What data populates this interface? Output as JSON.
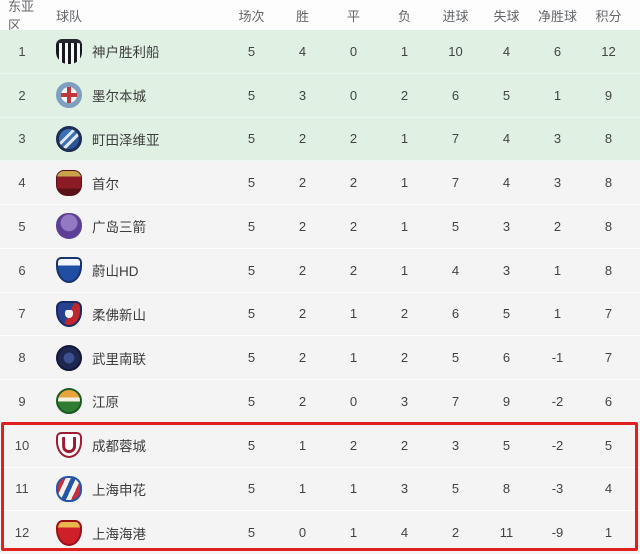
{
  "table": {
    "columns": [
      "东亚区",
      "球队",
      "场次",
      "胜",
      "平",
      "负",
      "进球",
      "失球",
      "净胜球",
      "积分"
    ],
    "rows": [
      {
        "rank": 1,
        "team": "神户胜利船",
        "badge": "kobe",
        "played": 5,
        "win": 4,
        "draw": 0,
        "loss": 1,
        "goals_for": 10,
        "goals_against": 4,
        "goal_diff": 6,
        "points": 12,
        "zone": "green",
        "highlighted": false
      },
      {
        "rank": 2,
        "team": "墨尔本城",
        "badge": "melb",
        "played": 5,
        "win": 3,
        "draw": 0,
        "loss": 2,
        "goals_for": 6,
        "goals_against": 5,
        "goal_diff": 1,
        "points": 9,
        "zone": "green",
        "highlighted": false
      },
      {
        "rank": 3,
        "team": "町田泽维亚",
        "badge": "machida",
        "played": 5,
        "win": 2,
        "draw": 2,
        "loss": 1,
        "goals_for": 7,
        "goals_against": 4,
        "goal_diff": 3,
        "points": 8,
        "zone": "green",
        "highlighted": false
      },
      {
        "rank": 4,
        "team": "首尔",
        "badge": "seoul",
        "played": 5,
        "win": 2,
        "draw": 2,
        "loss": 1,
        "goals_for": 7,
        "goals_against": 4,
        "goal_diff": 3,
        "points": 8,
        "zone": "normal",
        "highlighted": false
      },
      {
        "rank": 5,
        "team": "广岛三箭",
        "badge": "hiroshima",
        "played": 5,
        "win": 2,
        "draw": 2,
        "loss": 1,
        "goals_for": 5,
        "goals_against": 3,
        "goal_diff": 2,
        "points": 8,
        "zone": "normal",
        "highlighted": false
      },
      {
        "rank": 6,
        "team": "蔚山HD",
        "badge": "ulsan",
        "played": 5,
        "win": 2,
        "draw": 2,
        "loss": 1,
        "goals_for": 4,
        "goals_against": 3,
        "goal_diff": 1,
        "points": 8,
        "zone": "normal",
        "highlighted": false
      },
      {
        "rank": 7,
        "team": "柔佛新山",
        "badge": "jdt",
        "played": 5,
        "win": 2,
        "draw": 1,
        "loss": 2,
        "goals_for": 6,
        "goals_against": 5,
        "goal_diff": 1,
        "points": 7,
        "zone": "normal",
        "highlighted": false
      },
      {
        "rank": 8,
        "team": "武里南联",
        "badge": "buriram",
        "played": 5,
        "win": 2,
        "draw": 1,
        "loss": 2,
        "goals_for": 5,
        "goals_against": 6,
        "goal_diff": -1,
        "points": 7,
        "zone": "normal",
        "highlighted": false
      },
      {
        "rank": 9,
        "team": "江原",
        "badge": "gangwon",
        "played": 5,
        "win": 2,
        "draw": 0,
        "loss": 3,
        "goals_for": 7,
        "goals_against": 9,
        "goal_diff": -2,
        "points": 6,
        "zone": "normal",
        "highlighted": false
      },
      {
        "rank": 10,
        "team": "成都蓉城",
        "badge": "chengdu",
        "played": 5,
        "win": 1,
        "draw": 2,
        "loss": 2,
        "goals_for": 3,
        "goals_against": 5,
        "goal_diff": -2,
        "points": 5,
        "zone": "normal",
        "highlighted": true
      },
      {
        "rank": 11,
        "team": "上海申花",
        "badge": "shenhua",
        "played": 5,
        "win": 1,
        "draw": 1,
        "loss": 3,
        "goals_for": 5,
        "goals_against": 8,
        "goal_diff": -3,
        "points": 4,
        "zone": "normal",
        "highlighted": true
      },
      {
        "rank": 12,
        "team": "上海海港",
        "badge": "port",
        "played": 5,
        "win": 0,
        "draw": 1,
        "loss": 4,
        "goals_for": 2,
        "goals_against": 11,
        "goal_diff": -9,
        "points": 1,
        "zone": "normal",
        "highlighted": true
      }
    ]
  },
  "colors": {
    "green_zone_bg": "#e0f1e4",
    "row_bg": "#f5f4f5",
    "highlight_border": "#e01f1f"
  }
}
